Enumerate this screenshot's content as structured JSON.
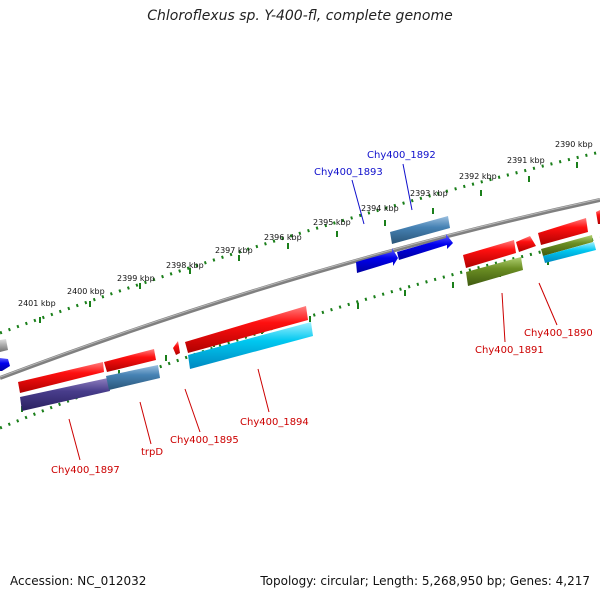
{
  "header": {
    "title": "Chloroflexus sp. Y-400-fl, complete genome"
  },
  "footer": {
    "accession": "Accession: NC_012032",
    "summary": "Topology: circular; Length: 5,268,950 bp; Genes: 4,217"
  },
  "colors": {
    "forward_feature": "#ff0000",
    "ncbi_blue_gene": "#0000ee",
    "steelblue_feature": "#4682b4",
    "cyan_feature": "#00bfff",
    "purple_feature": "#483d8b",
    "olive_feature": "#6b8e23",
    "backbone": "#808080",
    "tick": "#1a7f1a",
    "label_red": "#cc0000",
    "label_blue": "#1010cc"
  },
  "ticks": [
    {
      "label": "2390 kbp"
    },
    {
      "label": "2391 kbp"
    },
    {
      "label": "2392 kbp"
    },
    {
      "label": "2393 kbp"
    },
    {
      "label": "2394 kbp"
    },
    {
      "label": "2395 kbp"
    },
    {
      "label": "2396 kbp"
    },
    {
      "label": "2397 kbp"
    },
    {
      "label": "2398 kbp"
    },
    {
      "label": "2399 kbp"
    },
    {
      "label": "2400 kbp"
    },
    {
      "label": "2401 kbp"
    }
  ],
  "gene_labels": [
    {
      "text": "Chy400_1892",
      "color": "blue"
    },
    {
      "text": "Chy400_1893",
      "color": "blue"
    },
    {
      "text": "Chy400_1890",
      "color": "red"
    },
    {
      "text": "Chy400_1891",
      "color": "red"
    },
    {
      "text": "Chy400_1894",
      "color": "red"
    },
    {
      "text": "Chy400_1895",
      "color": "red"
    },
    {
      "text": "trpD",
      "color": "red"
    },
    {
      "text": "Chy400_1897",
      "color": "red"
    }
  ]
}
